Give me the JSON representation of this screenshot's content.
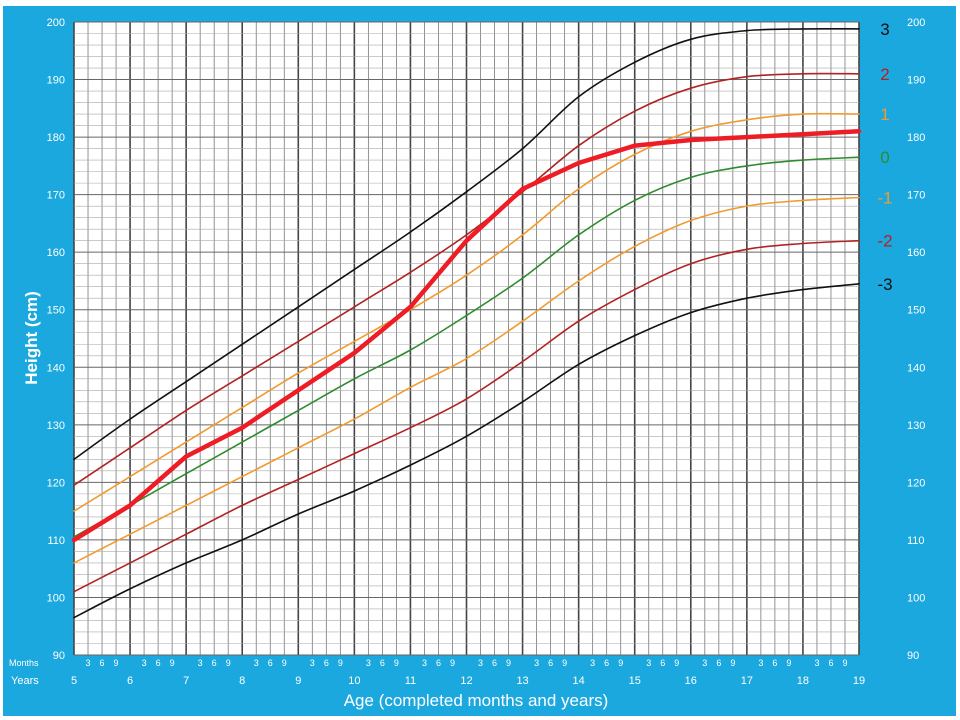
{
  "chart_data": {
    "type": "line",
    "xlabel": "Age (completed months and years)",
    "ylabel": "Height (cm)",
    "xlim": [
      5,
      19
    ],
    "ylim": [
      90,
      200
    ],
    "x_unit": "years",
    "grid": true,
    "years_label": "Years",
    "months_label": "Months",
    "month_ticks": [
      "3",
      "6",
      "9"
    ],
    "year_ticks": [
      "5",
      "6",
      "7",
      "8",
      "9",
      "10",
      "11",
      "12",
      "13",
      "14",
      "15",
      "16",
      "17",
      "18",
      "19"
    ],
    "y_ticks": [
      "90",
      "100",
      "110",
      "120",
      "130",
      "140",
      "150",
      "160",
      "170",
      "180",
      "190",
      "200"
    ],
    "colors": {
      "background": "#1aa8de",
      "plot": "#ffffff",
      "sd3": "#111111",
      "sd2": "#b22222",
      "sd1": "#f29a2e",
      "median": "#2e8b2e",
      "patient": "#ee1c24"
    },
    "series": [
      {
        "name": "3",
        "color": "#111111",
        "x": [
          5,
          6,
          7,
          8,
          9,
          10,
          11,
          12,
          13,
          14,
          15,
          16,
          17,
          18,
          19
        ],
        "values": [
          124,
          131,
          137.5,
          144,
          150.5,
          157,
          163.5,
          170.5,
          178,
          187,
          193,
          197,
          198.5,
          198.8,
          198.8
        ]
      },
      {
        "name": "2",
        "color": "#b22222",
        "x": [
          5,
          6,
          7,
          8,
          9,
          10,
          11,
          12,
          13,
          14,
          15,
          16,
          17,
          18,
          19
        ],
        "values": [
          119.5,
          126,
          132.5,
          138.5,
          144.5,
          150.5,
          156.5,
          163,
          170.5,
          178.5,
          184.5,
          188.5,
          190.5,
          191,
          191
        ]
      },
      {
        "name": "1",
        "color": "#f29a2e",
        "x": [
          5,
          6,
          7,
          8,
          9,
          10,
          11,
          12,
          13,
          14,
          15,
          16,
          17,
          18,
          19
        ],
        "values": [
          115,
          121,
          127,
          133,
          139,
          144.5,
          150,
          156,
          163,
          171,
          177,
          181,
          183,
          184,
          184
        ]
      },
      {
        "name": "0",
        "color": "#2e8b2e",
        "x": [
          5,
          6,
          7,
          8,
          9,
          10,
          11,
          12,
          13,
          14,
          15,
          16,
          17,
          18,
          19
        ],
        "values": [
          110.5,
          116,
          121.5,
          127,
          132.5,
          138,
          143,
          149,
          155.5,
          163,
          169,
          173,
          175,
          176,
          176.5
        ]
      },
      {
        "name": "-1",
        "color": "#f29a2e",
        "x": [
          5,
          6,
          7,
          8,
          9,
          10,
          11,
          12,
          13,
          14,
          15,
          16,
          17,
          18,
          19
        ],
        "values": [
          106,
          111,
          116,
          121,
          126,
          131,
          136.5,
          141.5,
          148,
          155,
          161,
          165.5,
          168,
          169,
          169.5
        ]
      },
      {
        "name": "-2",
        "color": "#b22222",
        "x": [
          5,
          6,
          7,
          8,
          9,
          10,
          11,
          12,
          13,
          14,
          15,
          16,
          17,
          18,
          19
        ],
        "values": [
          101,
          106,
          111,
          116,
          120.5,
          125,
          129.5,
          134.5,
          141,
          148,
          153.5,
          158,
          160.5,
          161.5,
          162
        ]
      },
      {
        "name": "-3",
        "color": "#111111",
        "x": [
          5,
          6,
          7,
          8,
          9,
          10,
          11,
          12,
          13,
          14,
          15,
          16,
          17,
          18,
          19
        ],
        "values": [
          96.5,
          101.5,
          106,
          110,
          114.5,
          118.5,
          123,
          128,
          134,
          140.5,
          145.5,
          149.5,
          152,
          153.5,
          154.5
        ]
      },
      {
        "color": "#ee1c24",
        "x": [
          5,
          6,
          7,
          8,
          9,
          10,
          11,
          12,
          13,
          14,
          15,
          16,
          17,
          18,
          19
        ],
        "values": [
          110,
          116,
          124.5,
          129.5,
          136,
          142.5,
          150.5,
          162,
          171,
          175.5,
          178.5,
          179.5,
          180,
          180.5,
          181
        ]
      }
    ]
  }
}
